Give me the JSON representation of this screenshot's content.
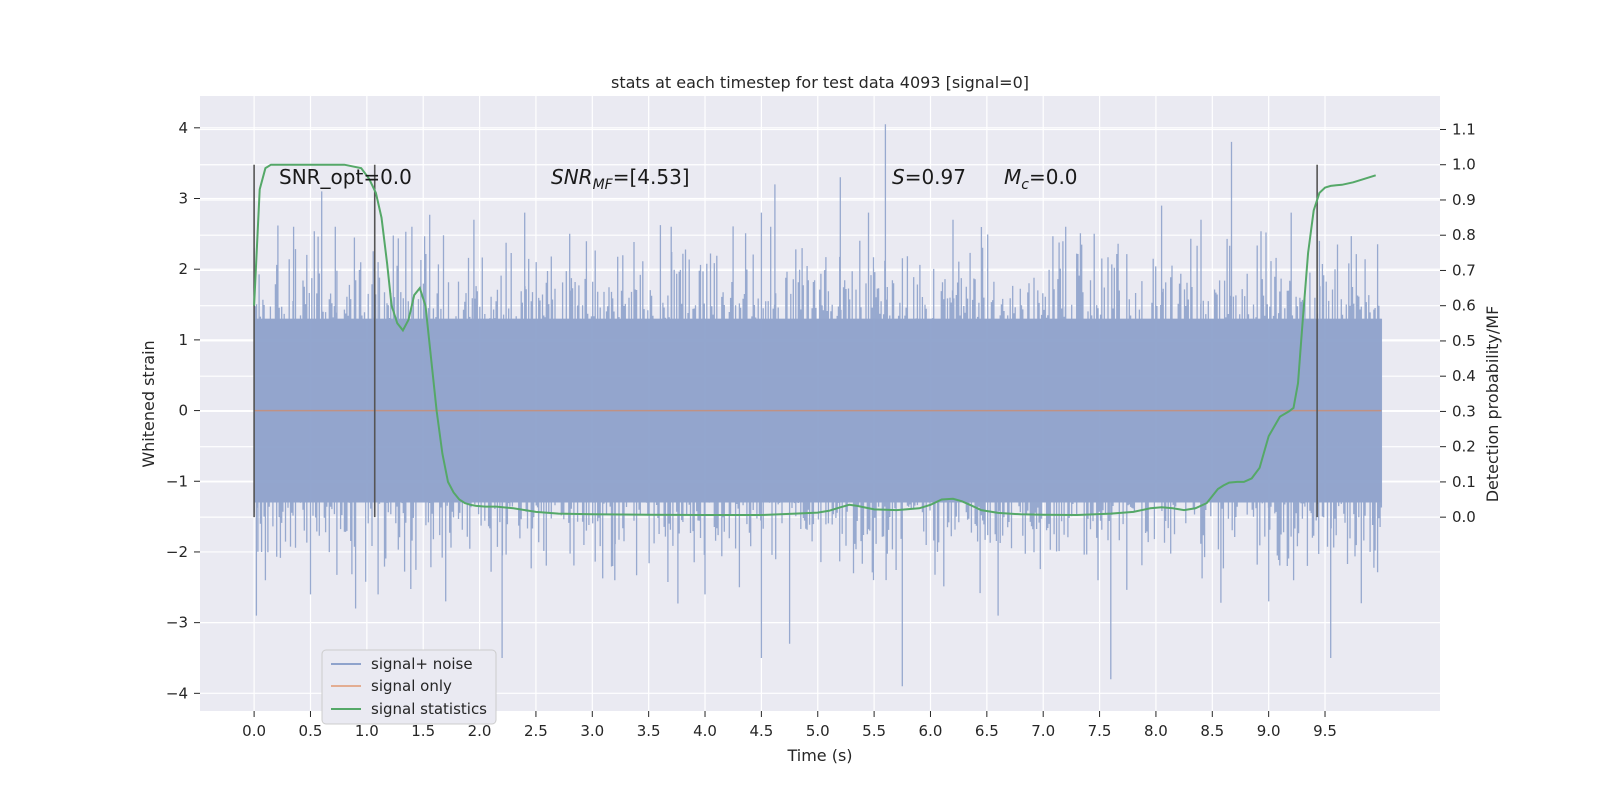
{
  "chart_data": {
    "type": "line",
    "title": "stats at each timestep for test data 4093 [signal=0]",
    "xlabel": "Time (s)",
    "ylabel": "Whitened strain",
    "y2label": "Detection probability/MF",
    "xlim": [
      -0.48,
      10.52
    ],
    "ylim": [
      -4.25,
      4.45
    ],
    "y2lim": [
      -0.55,
      1.195
    ],
    "x_ticks": [
      "0.0",
      "0.5",
      "1.0",
      "1.5",
      "2.0",
      "2.5",
      "3.0",
      "3.5",
      "4.0",
      "4.5",
      "5.0",
      "5.5",
      "6.0",
      "6.5",
      "7.0",
      "7.5",
      "8.0",
      "8.5",
      "9.0",
      "9.5"
    ],
    "y_ticks": [
      "4",
      "3",
      "2",
      "1",
      "0",
      "−1",
      "−2",
      "−3",
      "−4"
    ],
    "y2_ticks": [
      "1.1",
      "1.0",
      "0.9",
      "0.8",
      "0.7",
      "0.6",
      "0.5",
      "0.4",
      "0.3",
      "0.2",
      "0.1",
      "0.0"
    ],
    "grid": true,
    "legend_position": "lower-left",
    "annotations": {
      "snr_opt": "SNR_opt=0.0",
      "snr_mf_italic": "SNR",
      "snr_mf_sub": "MF",
      "snr_mf_rest": "=[4.53]",
      "s_italic": "S",
      "s_rest": "=0.97",
      "mc_italic": "M",
      "mc_sub": "c",
      "mc_rest": "=0.0"
    },
    "vertical_lines_x": [
      0.0,
      1.07,
      9.43
    ],
    "series": [
      {
        "name": "signal+ noise",
        "color": "#8fa3cc",
        "x_range": [
          0.0,
          10.0
        ],
        "typical_band": [
          -1.3,
          1.3
        ],
        "spikes": [
          {
            "x": 0.0,
            "y": 2.3
          },
          {
            "x": 0.02,
            "y": -2.9
          },
          {
            "x": 0.1,
            "y": -2.4
          },
          {
            "x": 0.35,
            "y": 2.6
          },
          {
            "x": 0.5,
            "y": -2.6
          },
          {
            "x": 0.6,
            "y": 3.1
          },
          {
            "x": 0.72,
            "y": 2.6
          },
          {
            "x": 0.9,
            "y": -2.8
          },
          {
            "x": 1.1,
            "y": 2.1
          },
          {
            "x": 1.1,
            "y": -2.6
          },
          {
            "x": 1.4,
            "y": 2.6
          },
          {
            "x": 1.7,
            "y": -2.7
          },
          {
            "x": 1.95,
            "y": 2.7
          },
          {
            "x": 2.2,
            "y": -3.5
          },
          {
            "x": 2.4,
            "y": 2.8
          },
          {
            "x": 2.8,
            "y": 2.5
          },
          {
            "x": 3.2,
            "y": -2.4
          },
          {
            "x": 3.7,
            "y": 2.6
          },
          {
            "x": 4.0,
            "y": -2.6
          },
          {
            "x": 4.5,
            "y": 2.8
          },
          {
            "x": 4.5,
            "y": -3.5
          },
          {
            "x": 4.62,
            "y": 3.2
          },
          {
            "x": 4.75,
            "y": -3.3
          },
          {
            "x": 5.2,
            "y": 3.3
          },
          {
            "x": 5.45,
            "y": 2.8
          },
          {
            "x": 5.6,
            "y": 4.05
          },
          {
            "x": 5.75,
            "y": -3.9
          },
          {
            "x": 6.2,
            "y": 2.7
          },
          {
            "x": 6.6,
            "y": -2.9
          },
          {
            "x": 7.2,
            "y": 2.6
          },
          {
            "x": 7.6,
            "y": -3.8
          },
          {
            "x": 8.05,
            "y": 2.9
          },
          {
            "x": 8.4,
            "y": 2.7
          },
          {
            "x": 8.67,
            "y": 3.8
          },
          {
            "x": 9.0,
            "y": -2.7
          },
          {
            "x": 9.2,
            "y": 2.8
          },
          {
            "x": 9.45,
            "y": 2.4
          },
          {
            "x": 9.55,
            "y": -3.5
          },
          {
            "x": 9.9,
            "y": -2.0
          }
        ]
      },
      {
        "name": "signal only",
        "color": "#dd8452",
        "x": [
          0.0,
          10.0
        ],
        "y": [
          0.0,
          0.0
        ]
      },
      {
        "name": "signal statistics",
        "color": "#55a868",
        "axis": "right",
        "x": [
          0.0,
          0.05,
          0.1,
          0.15,
          0.25,
          0.4,
          0.6,
          0.8,
          0.95,
          1.02,
          1.08,
          1.13,
          1.18,
          1.22,
          1.27,
          1.32,
          1.37,
          1.42,
          1.47,
          1.52,
          1.57,
          1.62,
          1.67,
          1.72,
          1.77,
          1.82,
          1.87,
          1.92,
          1.97,
          2.05,
          2.15,
          2.3,
          2.5,
          2.7,
          3.0,
          3.5,
          4.0,
          4.5,
          4.8,
          5.0,
          5.1,
          5.2,
          5.28,
          5.35,
          5.5,
          5.7,
          5.9,
          6.0,
          6.1,
          6.2,
          6.28,
          6.35,
          6.45,
          6.6,
          6.8,
          7.0,
          7.3,
          7.6,
          7.8,
          7.95,
          8.05,
          8.15,
          8.25,
          8.35,
          8.45,
          8.55,
          8.6,
          8.65,
          8.72,
          8.78,
          8.85,
          8.92,
          9.0,
          9.1,
          9.18,
          9.22,
          9.26,
          9.3,
          9.35,
          9.4,
          9.45,
          9.5,
          9.55,
          9.6,
          9.65,
          9.75,
          9.85,
          9.95
        ],
        "y": [
          0.6,
          0.93,
          0.99,
          1.0,
          1.0,
          1.0,
          1.0,
          1.0,
          0.99,
          0.96,
          0.92,
          0.85,
          0.72,
          0.6,
          0.55,
          0.53,
          0.56,
          0.63,
          0.65,
          0.6,
          0.45,
          0.3,
          0.18,
          0.1,
          0.07,
          0.05,
          0.04,
          0.035,
          0.032,
          0.03,
          0.03,
          0.025,
          0.015,
          0.01,
          0.008,
          0.007,
          0.006,
          0.006,
          0.01,
          0.013,
          0.018,
          0.028,
          0.035,
          0.032,
          0.022,
          0.02,
          0.025,
          0.035,
          0.05,
          0.052,
          0.045,
          0.035,
          0.02,
          0.012,
          0.008,
          0.007,
          0.006,
          0.01,
          0.015,
          0.025,
          0.028,
          0.025,
          0.02,
          0.025,
          0.04,
          0.08,
          0.09,
          0.098,
          0.1,
          0.1,
          0.11,
          0.14,
          0.23,
          0.285,
          0.3,
          0.31,
          0.38,
          0.55,
          0.75,
          0.87,
          0.92,
          0.935,
          0.94,
          0.942,
          0.943,
          0.95,
          0.96,
          0.97
        ]
      }
    ]
  }
}
